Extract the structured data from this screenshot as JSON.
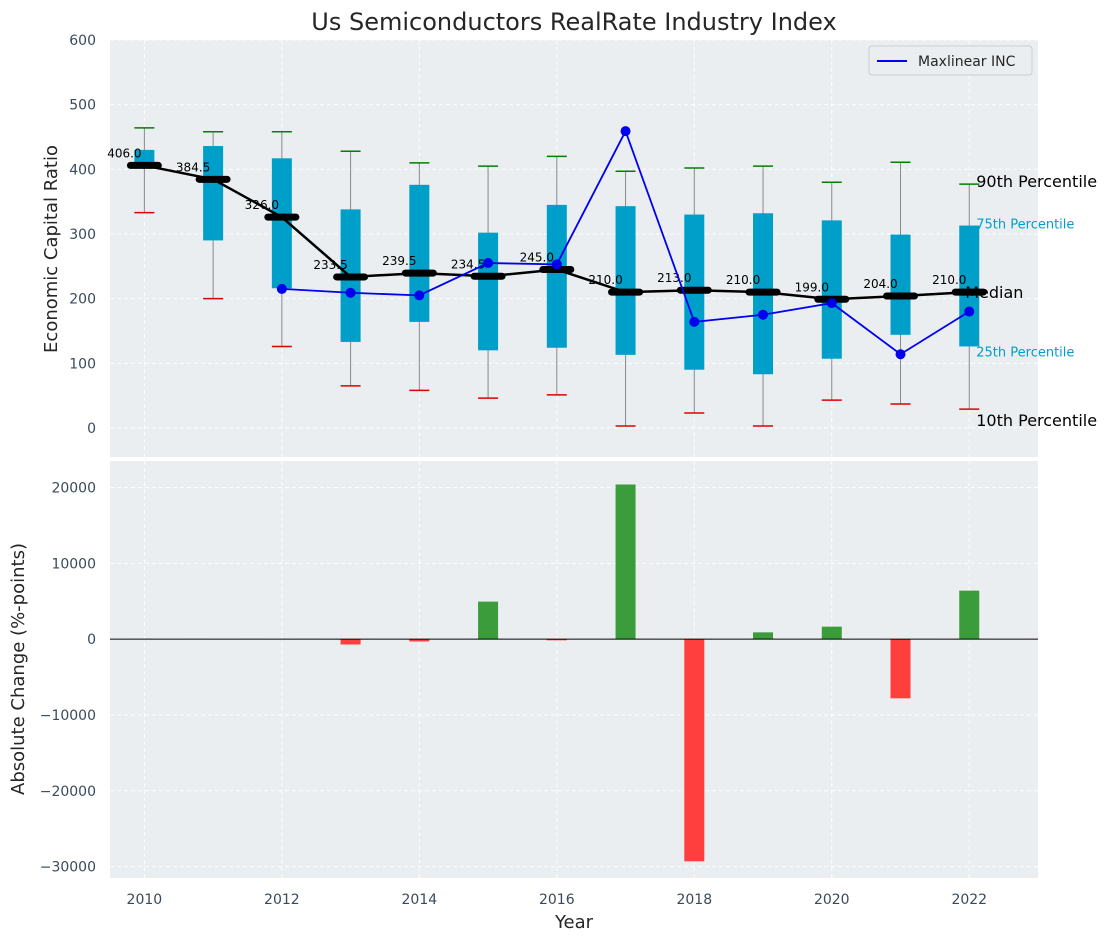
{
  "chart_data": {
    "type": "box+line+bar",
    "title": "Us Semiconductors RealRate Industry Index",
    "years": [
      2010,
      2011,
      2012,
      2013,
      2014,
      2015,
      2016,
      2017,
      2018,
      2019,
      2020,
      2021,
      2022
    ],
    "top_panel": {
      "ylabel": "Economic Capital Ratio",
      "ylim": [
        -45,
        600
      ],
      "yticks": [
        0,
        100,
        200,
        300,
        400,
        500,
        600
      ],
      "boxes": {
        "p10": [
          333,
          200,
          126,
          65,
          58,
          46,
          51,
          3,
          23,
          3,
          43,
          37,
          29
        ],
        "p25": [
          405,
          290,
          216,
          133,
          164,
          120,
          124,
          113,
          90,
          83,
          107,
          144,
          126
        ],
        "p75": [
          430,
          436,
          417,
          338,
          376,
          302,
          345,
          343,
          330,
          332,
          321,
          299,
          313
        ],
        "p90": [
          464,
          458,
          458,
          428,
          410,
          405,
          420,
          397,
          402,
          405,
          380,
          411,
          377
        ]
      },
      "median": {
        "name": "Median",
        "values": [
          406.0,
          384.5,
          326.0,
          233.5,
          239.5,
          234.5,
          245.0,
          210.0,
          213.0,
          210.0,
          199.0,
          204.0,
          210.0
        ],
        "labels": [
          "406.0",
          "384.5",
          "326.0",
          "233.5",
          "239.5",
          "234.5",
          "245.0",
          "210.0",
          "213.0",
          "210.0",
          "199.0",
          "204.0",
          "210.0"
        ]
      },
      "company": {
        "name": "Maxlinear INC",
        "years": [
          2012,
          2013,
          2014,
          2015,
          2016,
          2017,
          2018,
          2019,
          2020,
          2021,
          2022
        ],
        "values": [
          215,
          209,
          205,
          255,
          253,
          459,
          164,
          175,
          193,
          114,
          180
        ]
      },
      "right_labels": {
        "p90": "90th Percentile",
        "p75": "75th Percentile",
        "median": "Median",
        "p25": "25th Percentile",
        "p10": "10th Percentile"
      },
      "legend": {
        "position": "top-right",
        "entries": [
          "Maxlinear INC"
        ]
      }
    },
    "bottom_panel": {
      "type": "bar",
      "ylabel": "Absolute Change (%-points)",
      "xlabel": "Year",
      "ylim": [
        -31500,
        23500
      ],
      "yticks": [
        -30000,
        -20000,
        -10000,
        0,
        10000,
        20000
      ],
      "ytick_labels": [
        "−30000",
        "−20000",
        "−10000",
        "0",
        "10000",
        "20000"
      ],
      "values": [
        0,
        0,
        0,
        -700,
        -300,
        4950,
        -150,
        20400,
        -29300,
        900,
        1650,
        -7800,
        6400
      ]
    },
    "xlim": [
      2009.5,
      2023
    ],
    "xticks": [
      2010,
      2012,
      2014,
      2016,
      2018,
      2020,
      2022
    ],
    "colors": {
      "background": "#eaeef0",
      "box": "#009fc9",
      "whisker": "#888888",
      "p90_cap": "#008000",
      "p10_cap": "#e00000",
      "median": "#000000",
      "company": "#0000ee",
      "bar_positive": "#3a9c3a",
      "bar_negative": "#ff3e3e"
    }
  }
}
